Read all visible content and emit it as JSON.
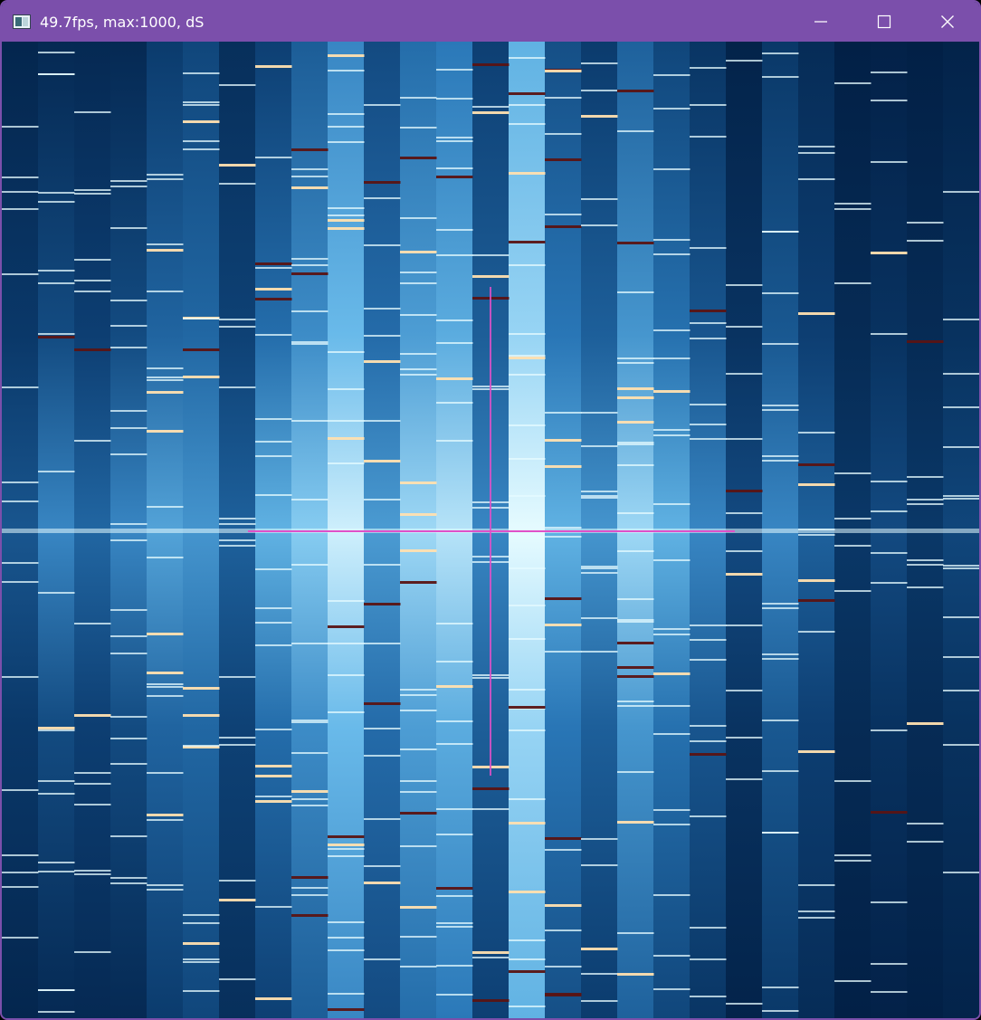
{
  "window": {
    "title": "49.7fps, max:1000, dS",
    "accent_color": "#7b4fab",
    "icons": {
      "app": "app-window-icon",
      "minimize": "minimize-icon",
      "maximize": "maximize-icon",
      "close": "close-icon"
    }
  },
  "visualization": {
    "colormap": [
      "#001a3d",
      "#0d3f73",
      "#2a78b8",
      "#6ec0ee",
      "#e6fbff",
      "#ffe0b0",
      "#5a1414"
    ],
    "crosshair_color": "#e050c8",
    "column_count": 27
  }
}
